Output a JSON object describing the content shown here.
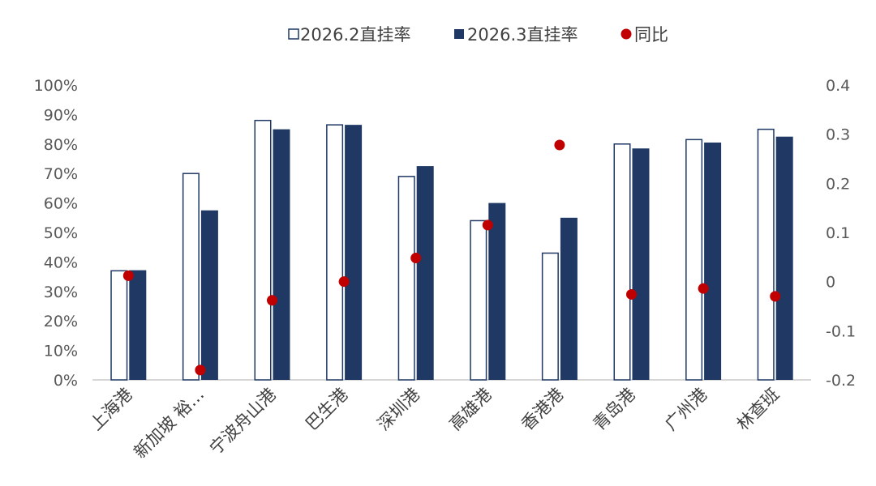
{
  "chart_data": {
    "type": "bar",
    "categories": [
      "上海港",
      "新加坡 裕…",
      "宁波舟山港",
      "巴生港",
      "深圳港",
      "高雄港",
      "香港港",
      "青岛港",
      "广州港",
      "林查班"
    ],
    "series": [
      {
        "name": "2026.2直挂率",
        "type": "bar",
        "axis": "left",
        "values": [
          37,
          70,
          88,
          86.5,
          69,
          54,
          43,
          80,
          81.5,
          85
        ],
        "style": "outline"
      },
      {
        "name": "2026.3直挂率",
        "type": "bar",
        "axis": "left",
        "values": [
          37.2,
          57.5,
          85,
          86.5,
          72.5,
          60,
          55,
          78.5,
          80.5,
          82.5
        ],
        "style": "filled"
      },
      {
        "name": "同比",
        "type": "scatter",
        "axis": "right",
        "values": [
          0.012,
          -0.18,
          -0.038,
          0.0,
          0.048,
          0.115,
          0.278,
          -0.026,
          -0.014,
          -0.03
        ]
      }
    ],
    "yaxis_left": {
      "min": 0,
      "max": 100,
      "step": 10,
      "ticks": [
        "0%",
        "10%",
        "20%",
        "30%",
        "40%",
        "50%",
        "60%",
        "70%",
        "80%",
        "90%",
        "100%"
      ]
    },
    "yaxis_right": {
      "min": -0.2,
      "max": 0.4,
      "step": 0.1,
      "ticks": [
        "-0.2",
        "-0.1",
        "0",
        "0.1",
        "0.2",
        "0.3",
        "0.4"
      ]
    },
    "legend_position": "top",
    "grid": false,
    "colors": {
      "bar_outline": "#1f3864",
      "bar_fill": "#1f3864",
      "dot": "#c00000",
      "axis": "#bfbfbf"
    }
  }
}
